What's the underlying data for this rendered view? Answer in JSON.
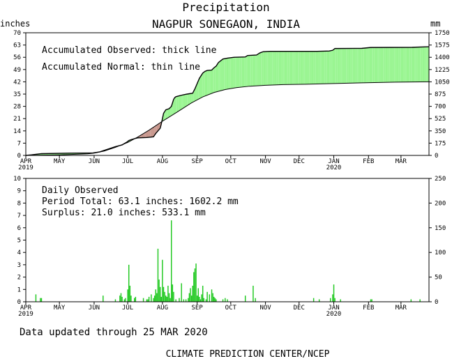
{
  "header": {
    "title": "Precipitation",
    "subtitle": "NAGPUR SONEGAON, INDIA"
  },
  "colors": {
    "surplus_fill": "#98f590",
    "deficit_fill": "#c8968c",
    "daily_bars": "#1ec81e"
  },
  "chart_data": [
    {
      "type": "area",
      "name": "accumulated",
      "ylabel_left": "inches",
      "ylabel_right": "mm",
      "ylim": [
        0,
        70
      ],
      "yticks_left": [
        "0",
        "7",
        "14",
        "21",
        "28",
        "35",
        "42",
        "49",
        "56",
        "63",
        "70"
      ],
      "yticks_right": [
        "0",
        "175",
        "350",
        "525",
        "700",
        "875",
        "1050",
        "1225",
        "1400",
        "1575",
        "1750"
      ],
      "x_domain_days": [
        0,
        360
      ],
      "months": [
        {
          "label": "APR",
          "year": "2019",
          "day": 0
        },
        {
          "label": "MAY",
          "year": "",
          "day": 30
        },
        {
          "label": "JUN",
          "year": "",
          "day": 61
        },
        {
          "label": "JUL",
          "year": "",
          "day": 91
        },
        {
          "label": "AUG",
          "year": "",
          "day": 122
        },
        {
          "label": "SEP",
          "year": "",
          "day": 153
        },
        {
          "label": "OCT",
          "year": "",
          "day": 183
        },
        {
          "label": "NOV",
          "year": "",
          "day": 214
        },
        {
          "label": "DEC",
          "year": "",
          "day": 244
        },
        {
          "label": "JAN",
          "year": "2020",
          "day": 275
        },
        {
          "label": "FEB",
          "year": "",
          "day": 306
        },
        {
          "label": "MAR",
          "year": "",
          "day": 335
        }
      ],
      "legend": [
        "Accumulated Observed: thick line",
        "Accumulated Normal: thin line"
      ],
      "observed": [
        [
          0,
          0
        ],
        [
          5,
          0.3
        ],
        [
          14,
          1
        ],
        [
          40,
          1.3
        ],
        [
          60,
          1.4
        ],
        [
          66,
          2
        ],
        [
          80,
          5
        ],
        [
          86,
          6
        ],
        [
          90,
          7.5
        ],
        [
          92,
          8.5
        ],
        [
          94,
          9
        ],
        [
          98,
          9.7
        ],
        [
          100,
          10
        ],
        [
          108,
          10.2
        ],
        [
          114,
          10.6
        ],
        [
          116,
          12.5
        ],
        [
          118,
          14
        ],
        [
          120,
          15.5
        ],
        [
          121,
          18
        ],
        [
          123,
          24
        ],
        [
          125,
          26
        ],
        [
          128,
          26.7
        ],
        [
          130,
          28
        ],
        [
          132,
          32
        ],
        [
          133,
          33
        ],
        [
          134,
          33.5
        ],
        [
          140,
          34.5
        ],
        [
          144,
          35
        ],
        [
          149,
          35.5
        ],
        [
          151,
          38
        ],
        [
          153,
          41
        ],
        [
          155,
          44
        ],
        [
          158,
          47
        ],
        [
          160,
          48
        ],
        [
          162,
          48.5
        ],
        [
          166,
          48.7
        ],
        [
          168,
          50
        ],
        [
          170,
          51
        ],
        [
          172,
          53
        ],
        [
          174,
          54
        ],
        [
          176,
          55
        ],
        [
          180,
          55.5
        ],
        [
          186,
          56
        ],
        [
          196,
          56.2
        ],
        [
          198,
          57
        ],
        [
          206,
          57.3
        ],
        [
          209,
          58.5
        ],
        [
          212,
          59.2
        ],
        [
          218,
          59.4
        ],
        [
          224,
          59.4
        ],
        [
          260,
          59.4
        ],
        [
          271,
          59.6
        ],
        [
          274,
          60
        ],
        [
          276,
          61
        ],
        [
          300,
          61.1
        ],
        [
          308,
          61.6
        ],
        [
          345,
          61.7
        ],
        [
          360,
          62
        ]
      ],
      "normal": [
        [
          0,
          0
        ],
        [
          30,
          0.3
        ],
        [
          55,
          0.9
        ],
        [
          61,
          1.3
        ],
        [
          70,
          2.5
        ],
        [
          80,
          4.6
        ],
        [
          91,
          7.4
        ],
        [
          100,
          10.5
        ],
        [
          110,
          14.4
        ],
        [
          122,
          19.5
        ],
        [
          135,
          24.7
        ],
        [
          148,
          30
        ],
        [
          158,
          33.4
        ],
        [
          168,
          35.9
        ],
        [
          178,
          37.6
        ],
        [
          188,
          38.7
        ],
        [
          200,
          39.5
        ],
        [
          214,
          40
        ],
        [
          230,
          40.4
        ],
        [
          250,
          40.6
        ],
        [
          275,
          41
        ],
        [
          300,
          41.4
        ],
        [
          330,
          41.8
        ],
        [
          360,
          42
        ]
      ]
    },
    {
      "type": "bar",
      "name": "daily",
      "ylim": [
        0,
        10
      ],
      "yticks_left": [
        "0",
        "1",
        "2",
        "3",
        "4",
        "5",
        "6",
        "7",
        "8",
        "9",
        "10"
      ],
      "yticks_right": [
        "0",
        "50",
        "100",
        "150",
        "200",
        "250"
      ],
      "legend_title": "Daily Observed",
      "summary": [
        "Period Total:   63.1 inches:  1602.2 mm",
        "Surplus:   21.0 inches:  533.1 mm"
      ],
      "bars": [
        [
          9,
          0.6
        ],
        [
          13,
          0.3
        ],
        [
          14,
          0.3
        ],
        [
          69,
          0.5
        ],
        [
          80,
          0.2
        ],
        [
          84,
          0.5
        ],
        [
          85,
          0.7
        ],
        [
          86,
          0.4
        ],
        [
          88,
          0.2
        ],
        [
          89,
          0.3
        ],
        [
          91,
          1.0
        ],
        [
          92,
          3.0
        ],
        [
          93,
          1.3
        ],
        [
          94,
          0.5
        ],
        [
          97,
          0.3
        ],
        [
          98,
          0.4
        ],
        [
          105,
          0.3
        ],
        [
          108,
          0.2
        ],
        [
          109,
          0.2
        ],
        [
          110,
          0.4
        ],
        [
          112,
          0.6
        ],
        [
          114,
          0.3
        ],
        [
          115,
          0.5
        ],
        [
          116,
          1.0
        ],
        [
          117,
          0.7
        ],
        [
          118,
          4.3
        ],
        [
          119,
          1.8
        ],
        [
          120,
          1.2
        ],
        [
          121,
          0.4
        ],
        [
          122,
          3.4
        ],
        [
          123,
          1.2
        ],
        [
          124,
          0.8
        ],
        [
          125,
          0.5
        ],
        [
          126,
          0.4
        ],
        [
          127,
          1.3
        ],
        [
          128,
          0.7
        ],
        [
          129,
          0.3
        ],
        [
          130,
          6.6
        ],
        [
          131,
          1.4
        ],
        [
          132,
          0.8
        ],
        [
          134,
          0.2
        ],
        [
          137,
          0.3
        ],
        [
          139,
          1.5
        ],
        [
          141,
          0.2
        ],
        [
          143,
          0.2
        ],
        [
          145,
          0.3
        ],
        [
          146,
          0.7
        ],
        [
          147,
          1.1
        ],
        [
          148,
          0.5
        ],
        [
          149,
          1.3
        ],
        [
          150,
          2.4
        ],
        [
          151,
          2.7
        ],
        [
          152,
          3.1
        ],
        [
          153,
          0.5
        ],
        [
          154,
          1.1
        ],
        [
          155,
          0.4
        ],
        [
          156,
          0.2
        ],
        [
          157,
          0.6
        ],
        [
          158,
          1.3
        ],
        [
          159,
          0.3
        ],
        [
          161,
          0.2
        ],
        [
          162,
          0.8
        ],
        [
          164,
          0.6
        ],
        [
          166,
          1.0
        ],
        [
          167,
          0.7
        ],
        [
          168,
          0.4
        ],
        [
          169,
          0.3
        ],
        [
          170,
          0.2
        ],
        [
          176,
          0.2
        ],
        [
          178,
          0.3
        ],
        [
          180,
          0.2
        ],
        [
          196,
          0.5
        ],
        [
          203,
          1.3
        ],
        [
          205,
          0.3
        ],
        [
          257,
          0.3
        ],
        [
          262,
          0.2
        ],
        [
          272,
          0.3
        ],
        [
          274,
          0.6
        ],
        [
          275,
          1.4
        ],
        [
          276,
          0.3
        ],
        [
          281,
          0.2
        ],
        [
          308,
          0.2
        ],
        [
          309,
          0.2
        ],
        [
          344,
          0.2
        ],
        [
          352,
          0.2
        ]
      ]
    }
  ],
  "footer": {
    "updated": "Data updated through 25 MAR 2020",
    "credit": "CLIMATE PREDICTION CENTER/NCEP"
  }
}
